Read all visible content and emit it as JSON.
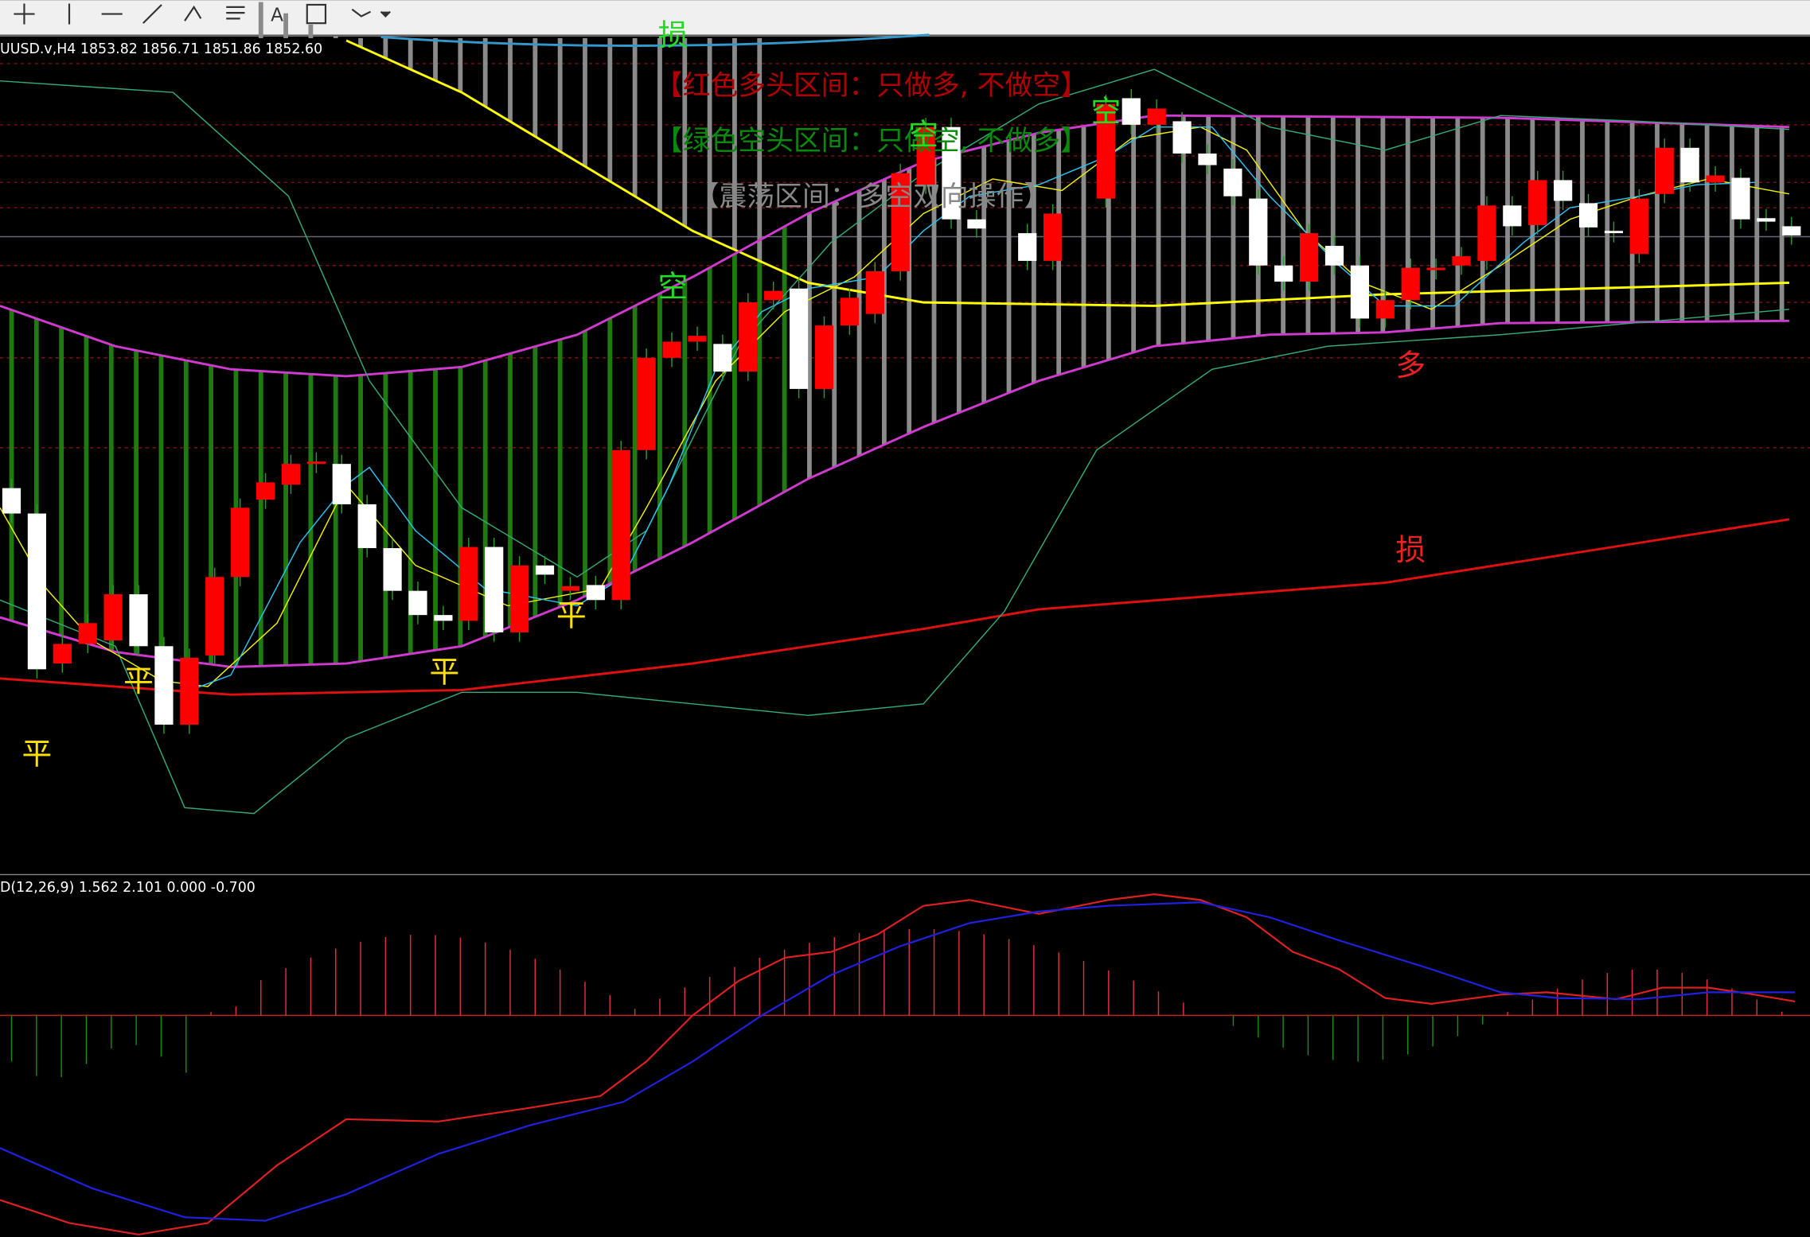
{
  "toolbar": {
    "text_tool": "A"
  },
  "header": {
    "symbol_info": "UUSD.v,H4  1853.82 1856.71 1851.86 1852.60"
  },
  "annotations": [
    "【红色多头区间：只做多, 不做空】",
    "【绿色空头区间：只做空, 不做多】",
    "【震荡区间：多空双向操作】"
  ],
  "markers": [
    {
      "label": "平",
      "color": "yellow"
    },
    {
      "label": "平",
      "color": "yellow"
    },
    {
      "label": "平",
      "color": "yellow"
    },
    {
      "label": "平",
      "color": "yellow"
    },
    {
      "label": "空",
      "color": "green"
    },
    {
      "label": "空",
      "color": "green"
    },
    {
      "label": "空",
      "color": "green"
    },
    {
      "label": "损",
      "color": "green"
    },
    {
      "label": "多",
      "color": "red"
    },
    {
      "label": "损",
      "color": "red"
    }
  ],
  "macd": {
    "label": "D(12,26,9) 1.562 2.101 0.000 -0.700"
  }
}
